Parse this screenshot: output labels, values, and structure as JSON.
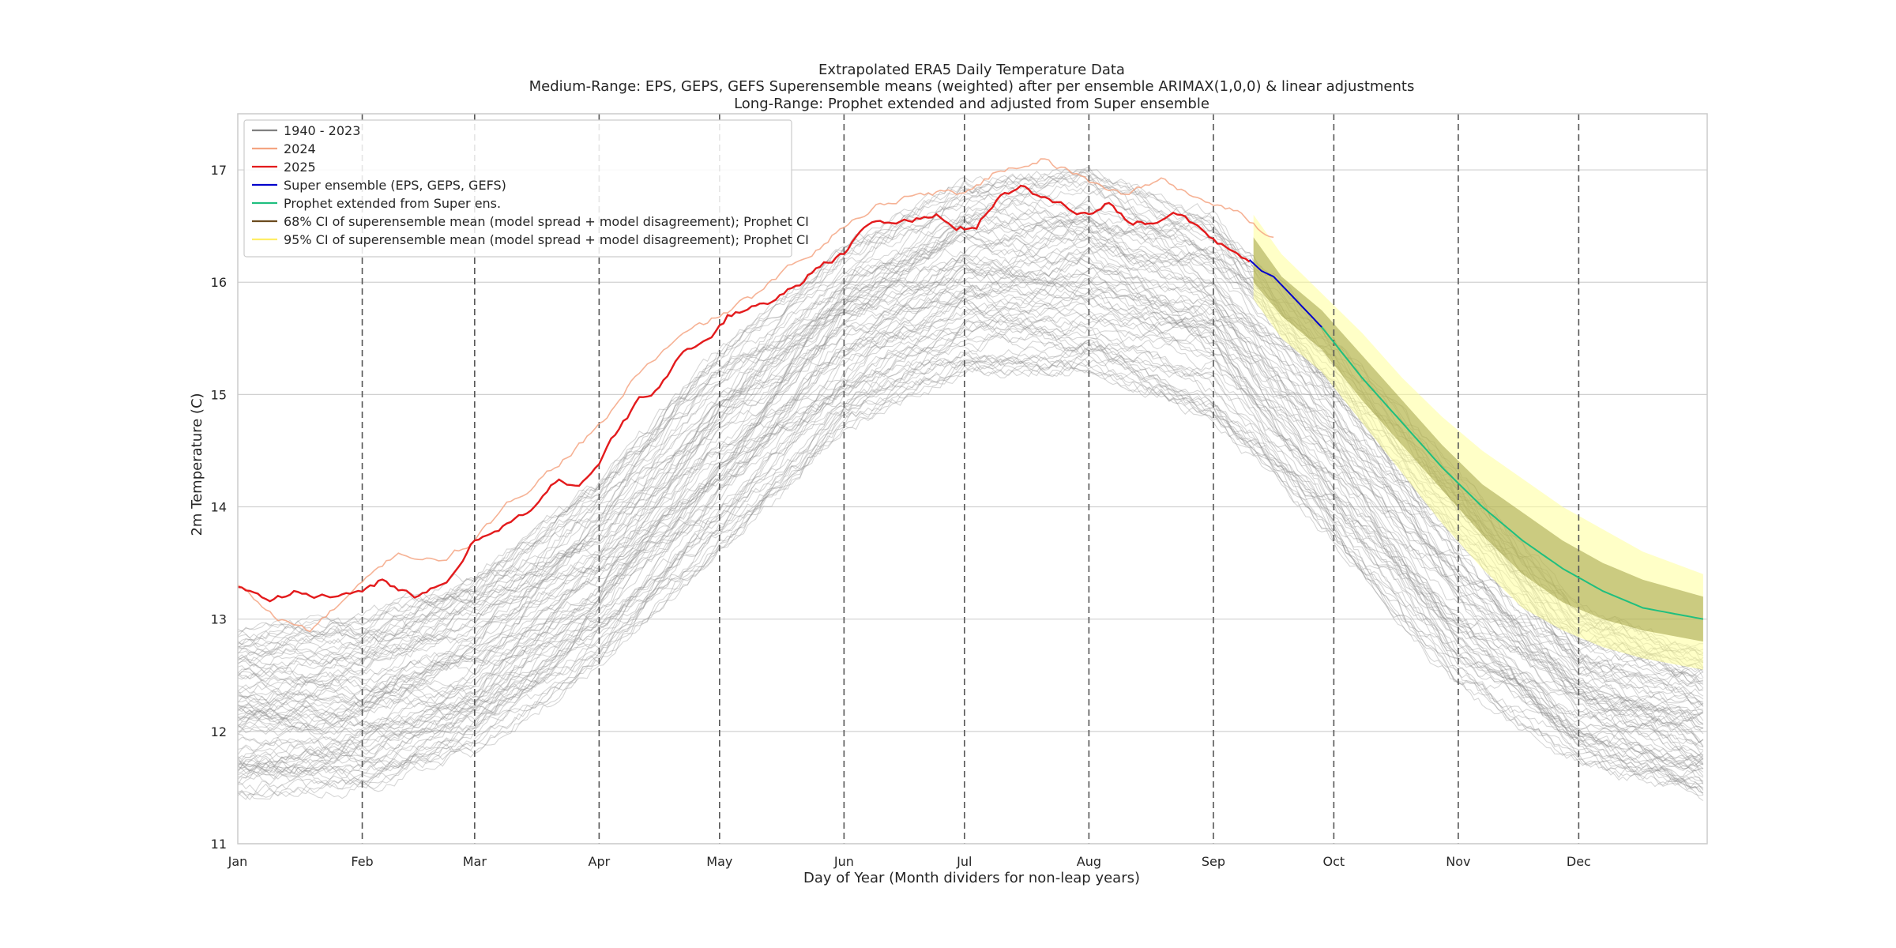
{
  "chart_data": {
    "type": "line",
    "title_lines": [
      "Extrapolated ERA5 Daily Temperature Data",
      "Medium-Range: EPS, GEPS, GEFS Superensemble means (weighted) after per ensemble ARIMAX(1,0,0) & linear adjustments",
      "Long-Range: Prophet extended and adjusted from Super ensemble"
    ],
    "xlabel": "Day of Year (Month dividers for non-leap years)",
    "ylabel": "2m Temperature (C)",
    "xlim": [
      0,
      366
    ],
    "ylim": [
      11,
      17.5
    ],
    "x_ticks": [
      {
        "label": "Jan",
        "day": 0
      },
      {
        "label": "Feb",
        "day": 31
      },
      {
        "label": "Mar",
        "day": 59
      },
      {
        "label": "Apr",
        "day": 90
      },
      {
        "label": "May",
        "day": 120
      },
      {
        "label": "Jun",
        "day": 151
      },
      {
        "label": "Jul",
        "day": 181
      },
      {
        "label": "Aug",
        "day": 212
      },
      {
        "label": "Sep",
        "day": 243
      },
      {
        "label": "Oct",
        "day": 273
      },
      {
        "label": "Nov",
        "day": 304
      },
      {
        "label": "Dec",
        "day": 334
      }
    ],
    "y_ticks": [
      11,
      12,
      13,
      14,
      15,
      16,
      17
    ],
    "month_dividers": [
      31,
      59,
      90,
      120,
      151,
      181,
      212,
      243,
      273,
      304,
      334
    ],
    "grid": true,
    "legend_position": "top-left",
    "legend": [
      {
        "label": "1940 - 2023",
        "color": "#808080",
        "kind": "line"
      },
      {
        "label": "2024",
        "color": "#f4a582",
        "kind": "line"
      },
      {
        "label": "2025",
        "color": "#e31a1c",
        "kind": "line"
      },
      {
        "label": "Super ensemble (EPS, GEPS, GEFS)",
        "color": "#0000cc",
        "kind": "line"
      },
      {
        "label": "Prophet extended from Super ens.",
        "color": "#1fbf7f",
        "kind": "line"
      },
      {
        "label": "68% CI of superensemble mean (model spread + model disagreement); Prophet CI",
        "color": "#6b4a1e",
        "kind": "line"
      },
      {
        "label": "95% CI of superensemble mean (model spread + model disagreement); Prophet CI",
        "color": "#ffee66",
        "kind": "line"
      }
    ],
    "historical_band": {
      "name": "1940 - 2023",
      "num_years": 84,
      "day": [
        0,
        31,
        59,
        90,
        120,
        151,
        181,
        212,
        243,
        273,
        304,
        334,
        365
      ],
      "low": [
        11.4,
        11.5,
        11.8,
        12.6,
        13.6,
        14.7,
        15.2,
        15.2,
        14.8,
        13.7,
        12.4,
        11.7,
        11.4
      ],
      "high": [
        12.9,
        13.0,
        13.4,
        14.2,
        15.4,
        16.3,
        16.9,
        17.0,
        16.6,
        15.5,
        14.3,
        13.1,
        12.7
      ]
    },
    "series": [
      {
        "name": "2024",
        "color": "#f4a582",
        "day": [
          0,
          10,
          18,
          31,
          40,
          50,
          59,
          70,
          80,
          90,
          100,
          110,
          120,
          130,
          140,
          151,
          160,
          170,
          181,
          190,
          200,
          212,
          220,
          230,
          243,
          250,
          258
        ],
        "value": [
          13.3,
          13.0,
          12.9,
          13.3,
          13.6,
          13.5,
          13.7,
          14.1,
          14.4,
          14.7,
          15.2,
          15.5,
          15.7,
          15.9,
          16.2,
          16.5,
          16.7,
          16.8,
          16.8,
          17.0,
          17.1,
          16.9,
          16.8,
          16.9,
          16.7,
          16.6,
          16.4
        ]
      },
      {
        "name": "2025",
        "color": "#e31a1c",
        "day": [
          0,
          8,
          15,
          22,
          31,
          36,
          45,
          52,
          59,
          66,
          73,
          80,
          85,
          90,
          96,
          100,
          105,
          110,
          116,
          122,
          128,
          134,
          140,
          146,
          151,
          157,
          163,
          168,
          174,
          179,
          184,
          190,
          195,
          200,
          206,
          212,
          217,
          222,
          228,
          234,
          240,
          246,
          252
        ],
        "value": [
          13.3,
          13.2,
          13.25,
          13.2,
          13.2,
          13.35,
          13.2,
          13.3,
          13.7,
          13.85,
          13.95,
          14.25,
          14.2,
          14.4,
          14.75,
          14.95,
          15.05,
          15.35,
          15.45,
          15.7,
          15.78,
          15.85,
          16.0,
          16.2,
          16.25,
          16.5,
          16.55,
          16.55,
          16.6,
          16.45,
          16.5,
          16.8,
          16.85,
          16.75,
          16.7,
          16.6,
          16.7,
          16.55,
          16.55,
          16.6,
          16.45,
          16.3,
          16.2
        ]
      },
      {
        "name": "Super ensemble (EPS, GEPS, GEFS)",
        "color": "#0000cc",
        "day": [
          252,
          255,
          258,
          262,
          266,
          270
        ],
        "value": [
          16.2,
          16.1,
          16.05,
          15.9,
          15.75,
          15.6
        ]
      },
      {
        "name": "Prophet extended from Super ens.",
        "color": "#1fbf7f",
        "day": [
          270,
          280,
          290,
          300,
          310,
          320,
          330,
          340,
          350,
          365
        ],
        "value": [
          15.6,
          15.15,
          14.75,
          14.35,
          14.0,
          13.7,
          13.45,
          13.25,
          13.1,
          13.0
        ]
      }
    ],
    "ci_bands": [
      {
        "name": "95% CI",
        "color": "#ffff99",
        "day": [
          253,
          260,
          270,
          280,
          290,
          300,
          310,
          320,
          330,
          340,
          350,
          365
        ],
        "low": [
          15.85,
          15.5,
          15.2,
          14.75,
          14.3,
          13.85,
          13.45,
          13.1,
          12.9,
          12.75,
          12.65,
          12.55
        ],
        "high": [
          16.6,
          16.25,
          15.9,
          15.55,
          15.15,
          14.8,
          14.5,
          14.25,
          14.0,
          13.8,
          13.6,
          13.4
        ]
      },
      {
        "name": "68% CI",
        "color": "#8b8b2a",
        "day": [
          253,
          260,
          270,
          280,
          290,
          300,
          310,
          320,
          330,
          340,
          350,
          365
        ],
        "low": [
          16.0,
          15.7,
          15.4,
          14.95,
          14.55,
          14.15,
          13.75,
          13.4,
          13.15,
          13.0,
          12.9,
          12.8
        ],
        "high": [
          16.4,
          16.05,
          15.75,
          15.35,
          14.95,
          14.55,
          14.2,
          13.95,
          13.7,
          13.5,
          13.35,
          13.2
        ]
      }
    ]
  }
}
